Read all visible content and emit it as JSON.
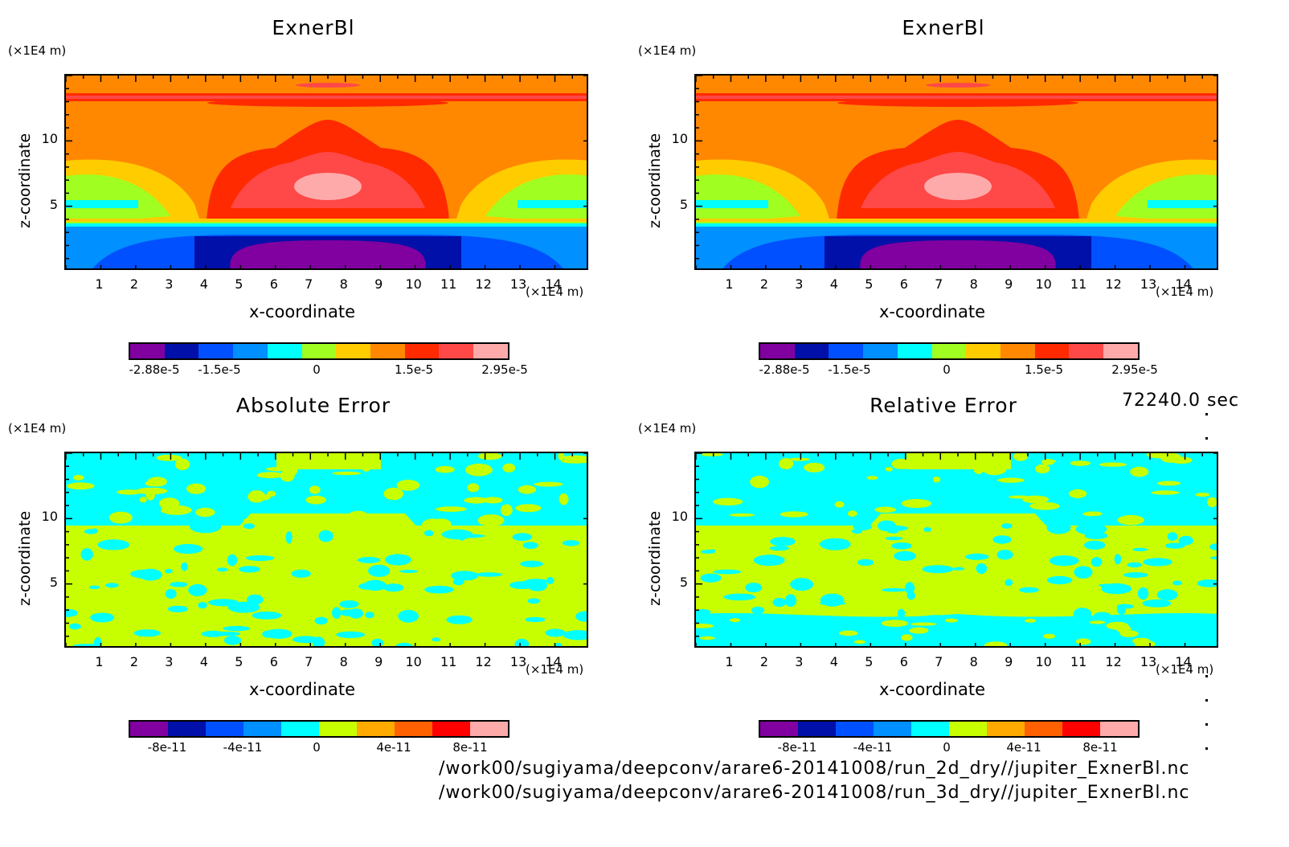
{
  "colors": {
    "field": [
      "#8000a0",
      "#0010a8",
      "#0050ff",
      "#0090ff",
      "#00ffff",
      "#a0ff20",
      "#ffcc00",
      "#ff8800",
      "#ff2a00",
      "#ff4848",
      "#ffaaaa"
    ],
    "error": [
      "#8000a0",
      "#0010a8",
      "#0050ff",
      "#0090ff",
      "#00ffff",
      "#c8ff00",
      "#ffaa00",
      "#ff6000",
      "#ff0000",
      "#ffaaaa"
    ]
  },
  "chart_data": [
    {
      "type": "heatmap",
      "title": "ExnerBl",
      "xlabel": "x-coordinate",
      "ylabel": "z-coordinate",
      "x_unit": "(×1E4 m)",
      "y_unit": "(×1E4 m)",
      "xlim": [
        0,
        15
      ],
      "ylim": [
        0,
        15
      ],
      "x_ticks": [
        "1",
        "2",
        "3",
        "4",
        "5",
        "6",
        "7",
        "8",
        "9",
        "10",
        "11",
        "12",
        "13",
        "14"
      ],
      "y_ticks": [
        "5",
        "10"
      ],
      "colorbar_labels": [
        "-2.88e-5",
        "-1.5e-5",
        "0",
        "1.5e-5",
        "2.95e-5"
      ],
      "vmin": -2.88e-05,
      "vmax": 2.95e-05
    },
    {
      "type": "heatmap",
      "title": "ExnerBl",
      "xlabel": "x-coordinate",
      "ylabel": "z-coordinate",
      "x_unit": "(×1E4 m)",
      "y_unit": "(×1E4 m)",
      "xlim": [
        0,
        15
      ],
      "ylim": [
        0,
        15
      ],
      "x_ticks": [
        "1",
        "2",
        "3",
        "4",
        "5",
        "6",
        "7",
        "8",
        "9",
        "10",
        "11",
        "12",
        "13",
        "14"
      ],
      "y_ticks": [
        "5",
        "10"
      ],
      "colorbar_labels": [
        "-2.88e-5",
        "-1.5e-5",
        "0",
        "1.5e-5",
        "2.95e-5"
      ],
      "vmin": -2.88e-05,
      "vmax": 2.95e-05
    },
    {
      "type": "heatmap",
      "title": "Absolute Error",
      "xlabel": "x-coordinate",
      "ylabel": "z-coordinate",
      "x_unit": "(×1E4 m)",
      "y_unit": "(×1E4 m)",
      "xlim": [
        0,
        15
      ],
      "ylim": [
        0,
        15
      ],
      "x_ticks": [
        "1",
        "2",
        "3",
        "4",
        "5",
        "6",
        "7",
        "8",
        "9",
        "10",
        "11",
        "12",
        "13",
        "14"
      ],
      "y_ticks": [
        "5",
        "10"
      ],
      "colorbar_labels": [
        "-8e-11",
        "-4e-11",
        "0",
        "4e-11",
        "8e-11"
      ]
    },
    {
      "type": "heatmap",
      "title": "Relative Error",
      "xlabel": "x-coordinate",
      "ylabel": "z-coordinate",
      "x_unit": "(×1E4 m)",
      "y_unit": "(×1E4 m)",
      "xlim": [
        0,
        15
      ],
      "ylim": [
        0,
        15
      ],
      "x_ticks": [
        "1",
        "2",
        "3",
        "4",
        "5",
        "6",
        "7",
        "8",
        "9",
        "10",
        "11",
        "12",
        "13",
        "14"
      ],
      "y_ticks": [
        "5",
        "10"
      ],
      "colorbar_labels": [
        "-8e-11",
        "-4e-11",
        "0",
        "4e-11",
        "8e-11"
      ]
    }
  ],
  "time_label": "72240.0 sec",
  "file_paths": [
    "/work00/sugiyama/deepconv/arare6-20141008/run_2d_dry//jupiter_ExnerBl.nc",
    "/work00/sugiyama/deepconv/arare6-20141008/run_3d_dry//jupiter_ExnerBl.nc"
  ]
}
